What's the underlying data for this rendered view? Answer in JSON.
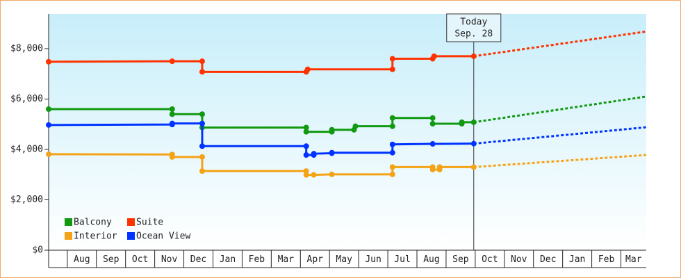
{
  "chart_data": {
    "type": "step-line",
    "categories": [
      null,
      "Aug",
      "Sep",
      "Oct",
      "Nov",
      "Dec",
      "Jan",
      "Feb",
      "Mar",
      "Apr",
      "May",
      "Jun",
      "Jul",
      "Aug",
      "Sep",
      "Oct",
      "Nov",
      "Dec",
      "Jan",
      "Feb",
      "Mar"
    ],
    "xlim": [
      0.36,
      20.87
    ],
    "ylim": [
      0,
      9380
    ],
    "yticks": [
      {
        "value": 0,
        "label": "$0"
      },
      {
        "value": 2000,
        "label": "$2,000"
      },
      {
        "value": 4000,
        "label": "$4,000"
      },
      {
        "value": 6000,
        "label": "$6,000"
      },
      {
        "value": 8000,
        "label": "$8,000"
      }
    ],
    "grid": false,
    "legend": "lower left",
    "annotation": {
      "x": 14.95,
      "text": [
        "Today",
        "Sep. 28"
      ]
    },
    "series": [
      {
        "name": "Balcony",
        "color": "#119911",
        "x": [
          0.36,
          4.6,
          4.6,
          5.63,
          5.63,
          9.2,
          9.2,
          10.08,
          10.08,
          10.84,
          10.89,
          12.16,
          12.16,
          13.54,
          13.54,
          14.54,
          14.54,
          14.95
        ],
        "values": [
          5600,
          5600,
          5400,
          5400,
          4870,
          4870,
          4700,
          4700,
          4780,
          4780,
          4920,
          4920,
          5250,
          5250,
          5020,
          5020,
          5080,
          5080
        ],
        "projection": {
          "x": [
            14.95,
            20.87
          ],
          "values": [
            5080,
            6100
          ]
        }
      },
      {
        "name": "Suite",
        "color": "#ff3300",
        "x": [
          0.36,
          4.6,
          5.63,
          5.63,
          9.2,
          9.25,
          12.16,
          12.16,
          13.54,
          13.59,
          14.95
        ],
        "values": [
          7480,
          7500,
          7500,
          7080,
          7080,
          7180,
          7180,
          7600,
          7600,
          7700,
          7700
        ],
        "projection": {
          "x": [
            14.95,
            20.87
          ],
          "values": [
            7700,
            8680
          ]
        }
      },
      {
        "name": "Interior",
        "color": "#f5a316",
        "x": [
          0.36,
          4.6,
          4.6,
          5.63,
          5.63,
          9.2,
          9.2,
          9.46,
          10.08,
          12.16,
          12.16,
          13.54,
          13.54,
          13.78,
          13.78,
          14.95
        ],
        "values": [
          3810,
          3800,
          3700,
          3700,
          3140,
          3140,
          2990,
          2990,
          3010,
          3010,
          3300,
          3300,
          3200,
          3200,
          3300,
          3300
        ],
        "projection": {
          "x": [
            14.95,
            20.87
          ],
          "values": [
            3300,
            3780
          ]
        }
      },
      {
        "name": "Ocean View",
        "color": "#0033ff",
        "x": [
          0.36,
          4.6,
          4.6,
          5.63,
          5.63,
          9.2,
          9.2,
          9.46,
          9.46,
          10.08,
          10.08,
          12.16,
          12.16,
          13.54,
          14.95
        ],
        "values": [
          4970,
          4990,
          5030,
          5030,
          4130,
          4130,
          3780,
          3780,
          3830,
          3850,
          3870,
          3870,
          4200,
          4220,
          4230
        ],
        "projection": {
          "x": [
            14.95,
            20.87
          ],
          "values": [
            4230,
            4880
          ]
        }
      }
    ]
  }
}
